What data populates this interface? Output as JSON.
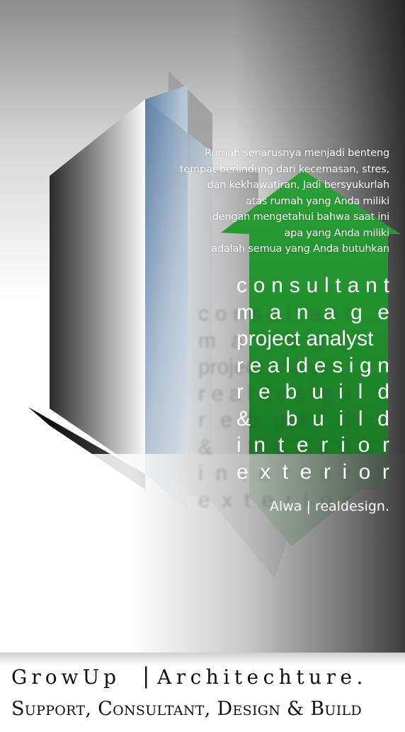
{
  "quote": {
    "lines": [
      "Rumah seharusnya menjadi benteng",
      "tempat berlindung dari kecemasan, stres,",
      "dan kekhawatiran, Jadi bersyukurlah",
      "atas rumah yang Anda miliki",
      "dengan mengetahui bahwa saat ini",
      "apa yang Anda miliki",
      "adalah semua yang Anda butuhkan"
    ]
  },
  "services": [
    "consultant",
    "manage",
    "project analyst",
    "realdesign",
    "rebuild",
    "& build",
    "interior",
    "exterior"
  ],
  "byline": "Alwa | realdesign.",
  "brand": {
    "line1_left": "GrowUp",
    "separator": "|",
    "line1_right": "Architechture.",
    "line2": "Support, Consultant, Design & Build"
  },
  "colors": {
    "arrow_green": "#1e8a2a",
    "building_blue": "#6f8fb4",
    "text_white": "#ffffff",
    "brand_text": "#111111"
  }
}
